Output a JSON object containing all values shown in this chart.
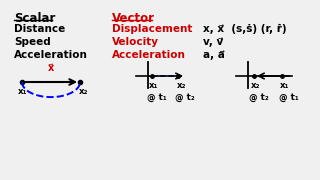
{
  "bg_color": "#f0f0f0",
  "text_color_black": "#000000",
  "text_color_red": "#cc0000",
  "scalar_header": "Scalar",
  "vector_header": "Vector",
  "rows": [
    {
      "scalar": "Distance",
      "vector": "Displacement",
      "symbols": "x, x⃗  (s,ṡ) (r, ṙ̇)"
    },
    {
      "scalar": "Speed",
      "vector": "Velocity",
      "symbols": "v, v⃗"
    },
    {
      "scalar": "Acceleration",
      "vector": "Acceleration",
      "symbols": "a, a⃗"
    }
  ],
  "disp_label": "x⃗",
  "x1": "x₁",
  "x2": "x₂",
  "at_t1": "@ t₁",
  "at_t2": "@ t₂"
}
